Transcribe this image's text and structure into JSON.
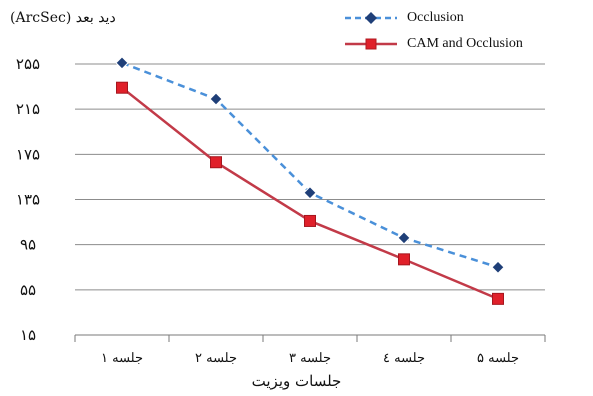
{
  "chart_data": {
    "type": "line",
    "ylabel": "دید بعد (ArcSec)",
    "xlabel": "جلسات ویزیت",
    "categories": [
      "جلسه ۱",
      "جلسه ۲",
      "جلسه ۳",
      "جلسه ٤",
      "جلسه ۵"
    ],
    "y_ticks": [
      "۱۵",
      "۵۵",
      "۹۵",
      "۱۳۵",
      "۱۷۵",
      "۲۱۵",
      "۲۵۵"
    ],
    "y_tick_values": [
      15,
      55,
      95,
      135,
      175,
      215,
      255
    ],
    "ylim": [
      15,
      255
    ],
    "grid": true,
    "legend_position": "top-right",
    "series": [
      {
        "name": "Occlusion",
        "values": [
          256,
          224,
          141,
          101,
          75
        ],
        "color": "#4a90d9",
        "marker": "diamond",
        "marker_color": "#1f3f78",
        "line_style": "dashed"
      },
      {
        "name": "CAM and Occlusion",
        "values": [
          234,
          168,
          116,
          82,
          47
        ],
        "color": "#c23a48",
        "marker": "square",
        "marker_color": "#e0202a",
        "line_style": "solid"
      }
    ]
  }
}
